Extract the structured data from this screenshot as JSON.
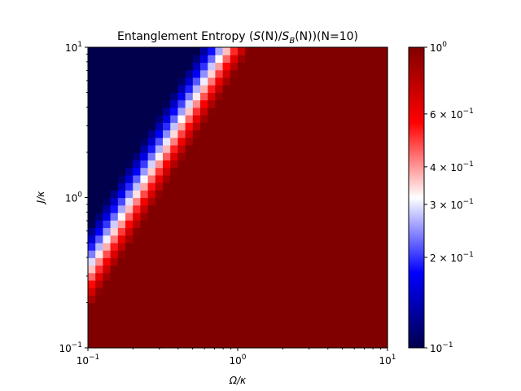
{
  "chart_data": {
    "type": "heatmap",
    "title": "Entanglement Entropy (S(N)/S_B(N))(N=10)",
    "title_parts": {
      "lead": "Entanglement Entropy (",
      "S1": "S",
      "N1": "(N)/",
      "S2": "S",
      "sub": "B",
      "N2": "(N))",
      "tail": "(N=10)"
    },
    "xlabel": "Ω/κ",
    "ylabel": "J/κ",
    "x_scale": "log",
    "y_scale": "log",
    "xlim": [
      0.1,
      10
    ],
    "ylim": [
      0.1,
      10
    ],
    "x_ticks": [
      {
        "value": 0.1,
        "base": "10",
        "exp": "−1"
      },
      {
        "value": 1,
        "base": "10",
        "exp": "0"
      },
      {
        "value": 10,
        "base": "10",
        "exp": "1"
      }
    ],
    "y_ticks": [
      {
        "value": 0.1,
        "base": "10",
        "exp": "−1"
      },
      {
        "value": 1,
        "base": "10",
        "exp": "0"
      },
      {
        "value": 10,
        "base": "10",
        "exp": "1"
      }
    ],
    "grid": {
      "nx": 40,
      "ny": 40
    },
    "colormap": "seismic",
    "colormap_stops": [
      "#00004c",
      "#0000ff",
      "#ffffff",
      "#ff0000",
      "#800000"
    ],
    "color_scale": "log",
    "clim": [
      0.1,
      1
    ],
    "colorbar_ticks": [
      {
        "value": 1,
        "base": "10",
        "exp": "0",
        "mant": ""
      },
      {
        "value": 0.6,
        "base": "10",
        "exp": "−1",
        "mant": "6 × "
      },
      {
        "value": 0.4,
        "base": "10",
        "exp": "−1",
        "mant": "4 × "
      },
      {
        "value": 0.3,
        "base": "10",
        "exp": "−1",
        "mant": "3 × "
      },
      {
        "value": 0.2,
        "base": "10",
        "exp": "−1",
        "mant": "2 × "
      },
      {
        "value": 0.1,
        "base": "10",
        "exp": "−1",
        "mant": ""
      }
    ],
    "field_model": {
      "form": "value = clip(10 ^ (-0.5 + 2.0 * tanh(1.5 * (log10(Ω/κ) - 0.62 * log10(J/κ) + 0.70))), 0.1, 1)",
      "boundary": "value ≈ 0.32 (white) along log10(Ω/κ) = 0.62·log10(J/κ) − 0.70"
    }
  }
}
